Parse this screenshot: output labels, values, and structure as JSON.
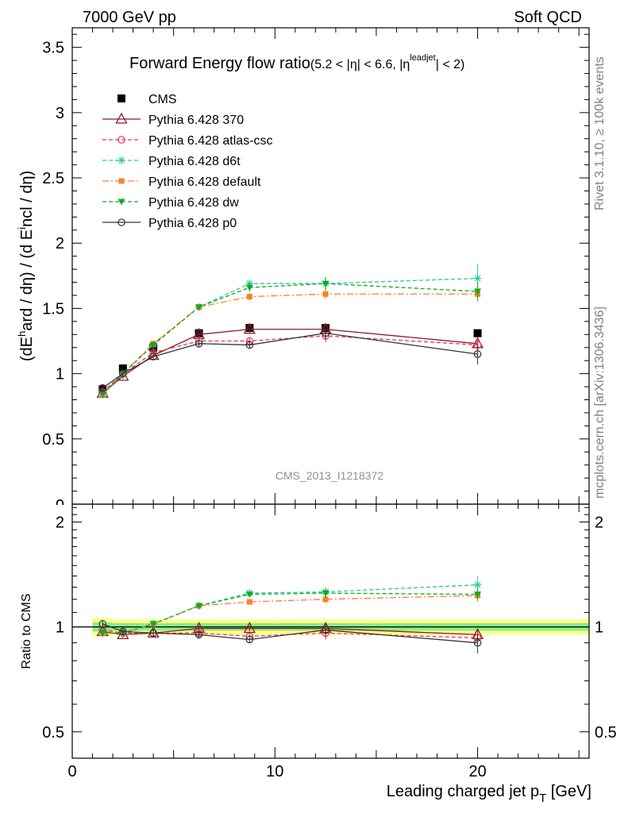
{
  "header": {
    "left": "7000 GeV pp",
    "right": "Soft QCD"
  },
  "side_labels": {
    "top": "Rivet 3.1.10, ≥ 100k events",
    "bottom": "mcplots.cern.ch [arXiv:1306.3436]"
  },
  "watermark": "CMS_2013_I1218372",
  "main_title": {
    "text": "Forward Energy flow ratio",
    "cut_a": "(5.2 < |η| < 6.6, |η",
    "cut_sup": "leadjet",
    "cut_b": "| < 2)"
  },
  "ylabel_top": "(dE^hard / dη) / (d Eincl / dη)",
  "ylabel_bottom": "Ratio to CMS",
  "xlabel": "Leading charged jet p_T [GeV]",
  "colors": {
    "CMS": "#000000",
    "p370": "#8b1a2a",
    "atlas": "#ee3355",
    "d6t": "#22cc99",
    "default": "#ff7f2a",
    "dw": "#11aa22",
    "p0": "#333333",
    "band_outer": "#ffff88",
    "band_inner": "#88ee88"
  },
  "chart_data": [
    {
      "type": "line",
      "panel": "main",
      "xlim": [
        0,
        25.5
      ],
      "ylim": [
        0,
        3.65
      ],
      "x_ticks": [
        0,
        10,
        20
      ],
      "y_ticks": [
        0.5,
        1,
        1.5,
        2,
        2.5,
        3,
        3.5
      ],
      "y_tick_labels": [
        "0.5",
        "1",
        "1.5",
        "2",
        "2.5",
        "3",
        "3.5"
      ],
      "series": [
        {
          "name": "CMS",
          "key": "CMS",
          "marker": "square",
          "line": "none",
          "x": [
            1.5,
            2.5,
            4,
            6.25,
            8.75,
            12.5,
            20
          ],
          "y": [
            0.88,
            1.04,
            1.2,
            1.31,
            1.35,
            1.35,
            1.31
          ],
          "err": [
            0.02,
            0.02,
            0.02,
            0.02,
            0.02,
            0.02,
            0.02
          ]
        },
        {
          "name": "Pythia 6.428 370",
          "key": "p370",
          "marker": "triangle-open",
          "line": "solid",
          "x": [
            1.5,
            2.5,
            4,
            6.25,
            8.75,
            12.5,
            20
          ],
          "y": [
            0.85,
            0.98,
            1.14,
            1.3,
            1.34,
            1.34,
            1.23
          ],
          "err": [
            0.02,
            0.02,
            0.02,
            0.02,
            0.03,
            0.04,
            0.05
          ]
        },
        {
          "name": "Pythia 6.428 atlas-csc",
          "key": "atlas",
          "marker": "circle-open",
          "line": "dashed",
          "x": [
            1.5,
            2.5,
            4,
            6.25,
            8.75,
            12.5,
            20
          ],
          "y": [
            0.86,
            1.0,
            1.16,
            1.25,
            1.25,
            1.29,
            1.22
          ],
          "err": [
            0.02,
            0.02,
            0.02,
            0.02,
            0.03,
            0.05,
            0.05
          ]
        },
        {
          "name": "Pythia 6.428 d6t",
          "key": "d6t",
          "marker": "star",
          "line": "dashed",
          "x": [
            1.5,
            2.5,
            4,
            6.25,
            8.75,
            12.5,
            20
          ],
          "y": [
            0.84,
            1.0,
            1.22,
            1.51,
            1.69,
            1.69,
            1.73
          ],
          "err": [
            0.02,
            0.02,
            0.02,
            0.02,
            0.03,
            0.05,
            0.11
          ]
        },
        {
          "name": "Pythia 6.428 default",
          "key": "default",
          "marker": "square-small",
          "line": "dashdot",
          "x": [
            1.5,
            2.5,
            4,
            6.25,
            8.75,
            12.5,
            20
          ],
          "y": [
            0.84,
            1.0,
            1.23,
            1.51,
            1.59,
            1.61,
            1.61
          ],
          "err": [
            0.02,
            0.02,
            0.02,
            0.02,
            0.03,
            0.04,
            0.06
          ]
        },
        {
          "name": "Pythia 6.428 dw",
          "key": "dw",
          "marker": "triangle-down",
          "line": "dashed",
          "x": [
            1.5,
            2.5,
            4,
            6.25,
            8.75,
            12.5,
            20
          ],
          "y": [
            0.84,
            1.0,
            1.22,
            1.51,
            1.66,
            1.69,
            1.63
          ],
          "err": [
            0.02,
            0.02,
            0.02,
            0.02,
            0.03,
            0.05,
            0.07
          ]
        },
        {
          "name": "Pythia 6.428 p0",
          "key": "p0",
          "marker": "circle-open",
          "line": "solid",
          "x": [
            1.5,
            2.5,
            4,
            6.25,
            8.75,
            12.5,
            20
          ],
          "y": [
            0.89,
            1.0,
            1.13,
            1.23,
            1.22,
            1.31,
            1.15
          ],
          "err": [
            0.02,
            0.02,
            0.02,
            0.02,
            0.03,
            0.05,
            0.08
          ]
        }
      ]
    },
    {
      "type": "line",
      "panel": "ratio",
      "xlim": [
        0,
        25.5
      ],
      "ylim": [
        0.42,
        2.25
      ],
      "log_y": true,
      "x_ticks": [
        0,
        10,
        20
      ],
      "x_tick_labels": [
        "0",
        "10",
        "20"
      ],
      "y_ticks": [
        0.5,
        1,
        2
      ],
      "y_tick_labels": [
        "0.5",
        "1",
        "2"
      ],
      "band": {
        "x_edges": [
          1,
          2,
          5,
          7.5,
          10,
          15,
          25.5
        ],
        "outer_lo": [
          0.94,
          0.95,
          0.95,
          0.95,
          0.95,
          0.95,
          0.95
        ],
        "outer_hi": [
          1.06,
          1.05,
          1.05,
          1.05,
          1.05,
          1.05,
          1.05
        ],
        "inner_lo": [
          0.97,
          0.975,
          0.975,
          0.975,
          0.975,
          0.975,
          0.975
        ],
        "inner_hi": [
          1.03,
          1.025,
          1.025,
          1.025,
          1.025,
          1.025,
          1.025
        ]
      },
      "series": [
        {
          "name": "Pythia 6.428 370",
          "key": "p370",
          "marker": "triangle-open",
          "line": "solid",
          "x": [
            1.5,
            2.5,
            4,
            6.25,
            8.75,
            12.5,
            20
          ],
          "y": [
            0.97,
            0.95,
            0.96,
            0.99,
            0.99,
            0.99,
            0.95
          ],
          "err": [
            0.02,
            0.02,
            0.02,
            0.02,
            0.02,
            0.03,
            0.04
          ]
        },
        {
          "name": "Pythia 6.428 atlas-csc",
          "key": "atlas",
          "marker": "circle-open",
          "line": "dashed",
          "x": [
            1.5,
            2.5,
            4,
            6.25,
            8.75,
            12.5,
            20
          ],
          "y": [
            0.98,
            0.96,
            0.96,
            0.96,
            0.94,
            0.96,
            0.93
          ],
          "err": [
            0.02,
            0.02,
            0.02,
            0.02,
            0.02,
            0.04,
            0.04
          ]
        },
        {
          "name": "Pythia 6.428 d6t",
          "key": "d6t",
          "marker": "star",
          "line": "dashed",
          "x": [
            1.5,
            2.5,
            4,
            6.25,
            8.75,
            12.5,
            20
          ],
          "y": [
            0.96,
            0.96,
            1.02,
            1.15,
            1.25,
            1.26,
            1.32
          ],
          "err": [
            0.02,
            0.02,
            0.02,
            0.02,
            0.02,
            0.04,
            0.08
          ]
        },
        {
          "name": "Pythia 6.428 default",
          "key": "default",
          "marker": "square-small",
          "line": "dashdot",
          "x": [
            1.5,
            2.5,
            4,
            6.25,
            8.75,
            12.5,
            20
          ],
          "y": [
            0.96,
            0.96,
            1.02,
            1.15,
            1.18,
            1.2,
            1.23
          ],
          "err": [
            0.02,
            0.02,
            0.02,
            0.02,
            0.02,
            0.03,
            0.05
          ]
        },
        {
          "name": "Pythia 6.428 dw",
          "key": "dw",
          "marker": "triangle-down",
          "line": "dashed",
          "x": [
            1.5,
            2.5,
            4,
            6.25,
            8.75,
            12.5,
            20
          ],
          "y": [
            0.96,
            0.96,
            1.02,
            1.15,
            1.24,
            1.25,
            1.24
          ],
          "err": [
            0.02,
            0.02,
            0.02,
            0.02,
            0.02,
            0.04,
            0.05
          ]
        },
        {
          "name": "Pythia 6.428 p0",
          "key": "p0",
          "marker": "circle-open",
          "line": "solid",
          "x": [
            1.5,
            2.5,
            4,
            6.25,
            8.75,
            12.5,
            20
          ],
          "y": [
            1.02,
            0.97,
            0.96,
            0.95,
            0.92,
            0.98,
            0.9
          ],
          "err": [
            0.02,
            0.02,
            0.02,
            0.02,
            0.02,
            0.04,
            0.06
          ]
        }
      ]
    }
  ]
}
